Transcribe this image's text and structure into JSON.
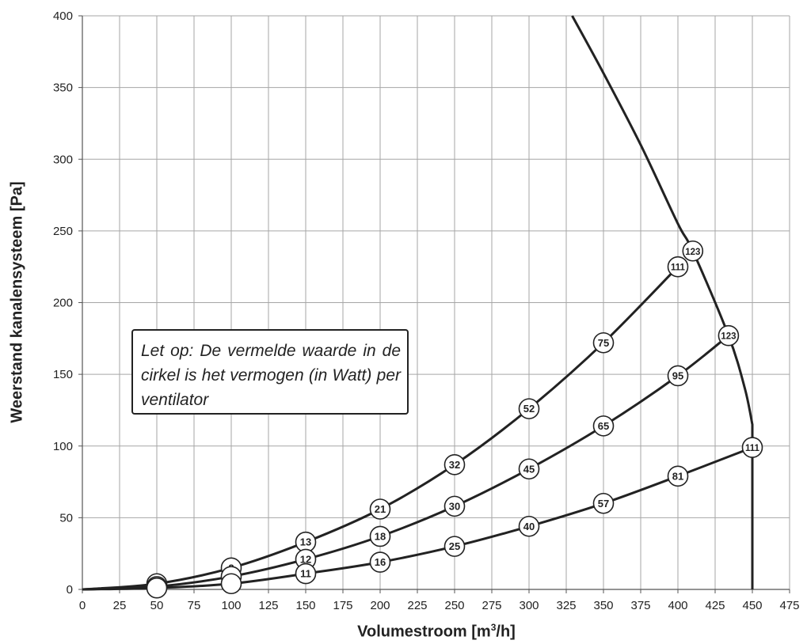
{
  "chart_data": {
    "type": "line",
    "xlabel_main": "Volumestroom [m",
    "xlabel_sup": "3",
    "xlabel_tail": "/h]",
    "ylabel": "Weerstand kanalensysteem [Pa]",
    "xlim": [
      0,
      475
    ],
    "ylim": [
      0,
      400
    ],
    "xticks": [
      0,
      25,
      50,
      75,
      100,
      125,
      150,
      175,
      200,
      225,
      250,
      275,
      300,
      325,
      350,
      375,
      400,
      425,
      450,
      475
    ],
    "yticks": [
      0,
      50,
      100,
      150,
      200,
      250,
      300,
      350,
      400
    ],
    "grid": true,
    "annotation": "Let op: De vermelde waarde in de cirkel is het vermogen (in Watt) per ventilator",
    "series": [
      {
        "points": [
          [
            0,
            0
          ],
          [
            50,
            4
          ],
          [
            100,
            15
          ],
          [
            150,
            33
          ],
          [
            200,
            56
          ],
          [
            250,
            87
          ],
          [
            300,
            126
          ],
          [
            350,
            172
          ],
          [
            400,
            225
          ]
        ],
        "labels": [
          null,
          "6",
          "8",
          "13",
          "21",
          "32",
          "52",
          "75",
          "111"
        ]
      },
      {
        "points": [
          [
            0,
            0
          ],
          [
            50,
            2
          ],
          [
            100,
            9
          ],
          [
            150,
            21
          ],
          [
            200,
            37
          ],
          [
            250,
            58
          ],
          [
            300,
            84
          ],
          [
            350,
            114
          ],
          [
            400,
            149
          ],
          [
            434,
            177
          ]
        ],
        "labels": [
          null,
          null,
          null,
          "12",
          "18",
          "30",
          "45",
          "65",
          "95",
          "123"
        ]
      },
      {
        "points": [
          [
            0,
            0
          ],
          [
            50,
            1
          ],
          [
            100,
            4
          ],
          [
            150,
            11
          ],
          [
            200,
            19
          ],
          [
            250,
            30
          ],
          [
            300,
            44
          ],
          [
            350,
            60
          ],
          [
            400,
            79
          ],
          [
            450,
            99
          ]
        ],
        "labels": [
          null,
          null,
          null,
          "11",
          "16",
          "25",
          "40",
          "57",
          "81",
          "111"
        ]
      },
      {
        "points": [
          [
            329,
            400
          ],
          [
            350,
            360
          ],
          [
            375,
            310
          ],
          [
            400,
            255
          ],
          [
            410,
            236
          ],
          [
            434,
            177
          ],
          [
            445,
            140
          ],
          [
            450,
            115
          ],
          [
            450,
            99
          ],
          [
            450,
            0
          ]
        ],
        "labels": [
          null,
          null,
          null,
          null,
          "123",
          null,
          null,
          null,
          null,
          null
        ]
      }
    ]
  }
}
